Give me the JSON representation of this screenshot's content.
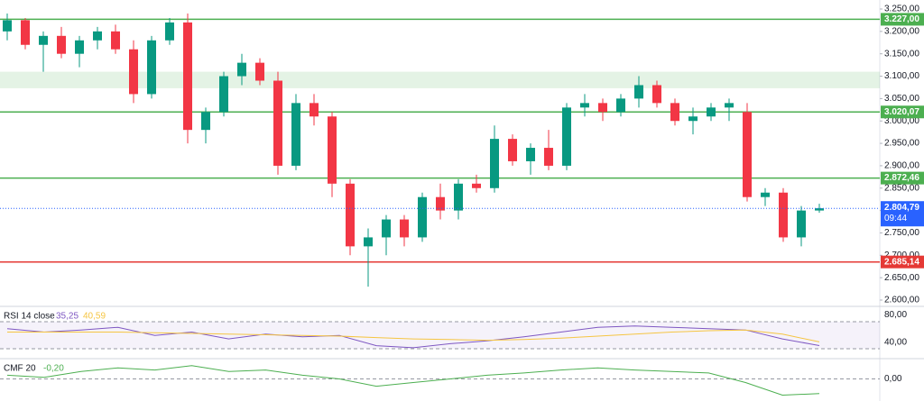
{
  "chart_data": {
    "type": "candlestick",
    "up_color": "#089981",
    "down_color": "#f23645",
    "open": [
      3200,
      3225,
      3170,
      3190,
      3150,
      3180,
      3200,
      3160,
      3060,
      3180,
      3220,
      2980,
      3020,
      3100,
      3130,
      3090,
      2900,
      3040,
      3010,
      2860,
      2720,
      2740,
      2780,
      2740,
      2830,
      2800,
      2860,
      2850,
      2960,
      2910,
      2940,
      2900,
      3030,
      3040,
      3020,
      3050,
      3080,
      3040,
      3000,
      3010,
      3030,
      3020,
      2830,
      2840,
      2740,
      2800
    ],
    "high": [
      3240,
      3230,
      3200,
      3210,
      3190,
      3210,
      3215,
      3180,
      3190,
      3230,
      3240,
      3030,
      3110,
      3150,
      3140,
      3110,
      3060,
      3060,
      3020,
      2870,
      2760,
      2790,
      2790,
      2840,
      2860,
      2870,
      2880,
      2990,
      2970,
      2950,
      2980,
      3040,
      3060,
      3050,
      3060,
      3100,
      3090,
      3050,
      3030,
      3040,
      3050,
      3040,
      2850,
      2850,
      2810,
      2815
    ],
    "low": [
      3180,
      3160,
      3110,
      3140,
      3120,
      3160,
      3150,
      3040,
      3050,
      3170,
      2950,
      2950,
      3010,
      3080,
      3080,
      2880,
      2890,
      2990,
      2830,
      2700,
      2630,
      2700,
      2720,
      2730,
      2780,
      2780,
      2840,
      2840,
      2900,
      2880,
      2890,
      2890,
      3010,
      3000,
      3010,
      3030,
      3030,
      2990,
      2970,
      3000,
      3000,
      2820,
      2810,
      2730,
      2720,
      2795
    ],
    "close": [
      3225,
      3170,
      3190,
      3150,
      3180,
      3200,
      3160,
      3060,
      3180,
      3220,
      2980,
      3020,
      3100,
      3130,
      3090,
      2900,
      3040,
      3010,
      2860,
      2720,
      2740,
      2780,
      2740,
      2830,
      2800,
      2860,
      2850,
      2960,
      2910,
      2940,
      2900,
      3030,
      3040,
      3020,
      3050,
      3080,
      3040,
      3000,
      3010,
      3030,
      3040,
      2830,
      2840,
      2740,
      2800,
      2805
    ],
    "ylim": [
      2600,
      3250
    ],
    "yticks": [
      {
        "value": 3250,
        "label": "3.250,00"
      },
      {
        "value": 3200,
        "label": "3.200,00"
      },
      {
        "value": 3150,
        "label": "3.150,00"
      },
      {
        "value": 3100,
        "label": "3.100,00"
      },
      {
        "value": 3050,
        "label": "3.050,00"
      },
      {
        "value": 3000,
        "label": "3.000,00"
      },
      {
        "value": 2950,
        "label": "2.950,00"
      },
      {
        "value": 2900,
        "label": "2.900,00"
      },
      {
        "value": 2850,
        "label": "2.850,00"
      },
      {
        "value": 2800,
        "label": "2.800,00"
      },
      {
        "value": 2750,
        "label": "2.750,00"
      },
      {
        "value": 2700,
        "label": "2.700,00"
      },
      {
        "value": 2650,
        "label": "2.650,00"
      },
      {
        "value": 2600,
        "label": "2.600,00"
      }
    ],
    "zone": [
      3073,
      3110
    ],
    "zone_color": "#4caf50",
    "levels": [
      {
        "value": 3227,
        "label": "3.227,00",
        "color": "#4caf50"
      },
      {
        "value": 3020.07,
        "label": "3.020,07",
        "color": "#4caf50"
      },
      {
        "value": 2872.46,
        "label": "2.872,46",
        "color": "#4caf50"
      },
      {
        "value": 2685.14,
        "label": "2.685,14",
        "color": "#e53935"
      }
    ],
    "last": {
      "value": 2804.79,
      "label": "2.804,79",
      "time": "09:44",
      "color": "#2962ff"
    },
    "rsi": {
      "title": "RSI 14 close",
      "ylim": [
        20,
        90
      ],
      "yticks": [
        {
          "value": 80,
          "label": "80,00"
        },
        {
          "value": 40,
          "label": "40,00"
        }
      ],
      "series": [
        {
          "color": "#7e57c2",
          "label": "35,25",
          "values": [
            60,
            55,
            58,
            62,
            50,
            55,
            45,
            52,
            48,
            50,
            35,
            32,
            38,
            42,
            48,
            55,
            62,
            64,
            62,
            60,
            58,
            45,
            35.25
          ]
        },
        {
          "color": "#f5c542",
          "label": "40,59",
          "values": [
            55,
            55,
            55,
            55,
            54,
            53,
            52,
            51,
            50,
            49,
            47,
            45,
            44,
            43,
            44,
            46,
            49,
            52,
            55,
            57,
            58,
            52,
            40.59
          ]
        }
      ]
    },
    "cmf": {
      "title": "CMF 20",
      "ylim": [
        -0.3,
        0.25
      ],
      "yticks": [
        {
          "value": 0,
          "label": "0,00"
        }
      ],
      "series": [
        {
          "color": "#4caf50",
          "label": "-0,20",
          "values": [
            0.05,
            0.02,
            0.1,
            0.15,
            0.12,
            0.18,
            0.1,
            0.12,
            0.05,
            0.0,
            -0.1,
            -0.05,
            0.0,
            0.05,
            0.08,
            0.12,
            0.15,
            0.12,
            0.1,
            0.08,
            -0.05,
            -0.22,
            -0.2
          ]
        }
      ]
    }
  }
}
